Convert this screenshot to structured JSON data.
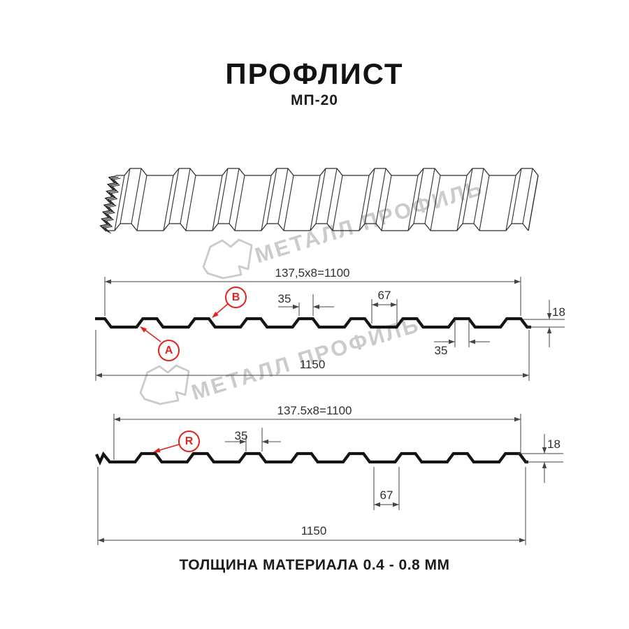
{
  "page": {
    "title": "ПРОФЛИСТ",
    "subtitle": "МП-20",
    "footer_note": "ТОЛЩИНА МАТЕРИАЛА 0.4 - 0.8 ММ"
  },
  "watermark": {
    "brand_text": "МЕТАЛЛ ПРОФИЛЬ"
  },
  "colors": {
    "ink": "#141414",
    "drawing_line": "#2e2e2e",
    "dimension_line": "#454545",
    "dimension_text": "#2f2f2f",
    "accent_red": "#e3231e",
    "watermark_gray": "#cbcbcb"
  },
  "profile_section_a": {
    "dim_pitch_total": "137,5x8=1100",
    "dim_overall_width": "1150",
    "dim_crest_width_top": "35",
    "dim_valley_width": "67",
    "dim_crest_width_bottom": "35",
    "dim_height": "18",
    "marker_a": "A",
    "marker_b": "B"
  },
  "profile_section_r": {
    "dim_pitch_total": "137.5x8=1100",
    "dim_overall_width": "1150",
    "dim_crest_width": "35",
    "dim_valley_width": "67",
    "dim_height": "18",
    "marker_r": "R"
  }
}
